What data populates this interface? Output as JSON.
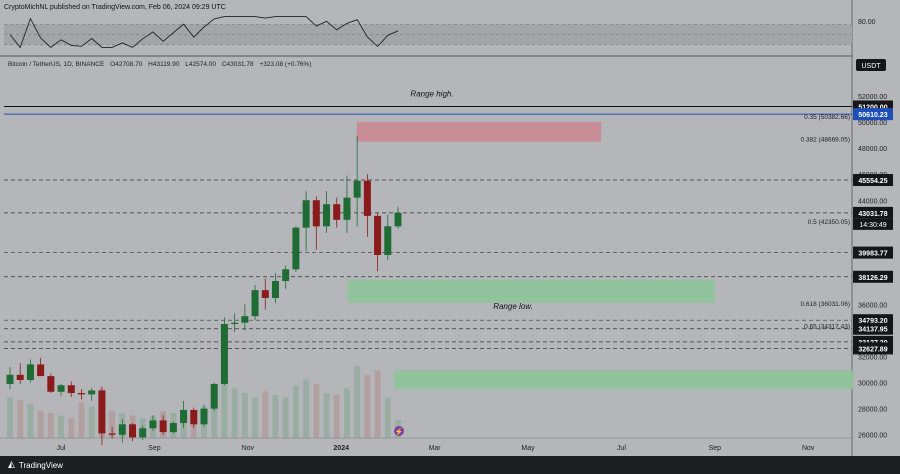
{
  "header": {
    "text": "CryptoMichNL published on TradingView.com, Feb 06, 2024 09:29 UTC"
  },
  "symbol": {
    "name": "Bitcoin / TetherUS, 1D, BINANCE",
    "open": "O42708.70",
    "high": "H43119.90",
    "low": "L42574.00",
    "close": "C43031.78",
    "change": "+323.08 (+0.76%)"
  },
  "currency": "USDT",
  "footer": {
    "brand": "TradingView"
  },
  "colors": {
    "bg": "#b5b6ba",
    "up": "#1f6b34",
    "down": "#8b1a1a",
    "support": "#8fc49b",
    "resistance": "#c98a93",
    "label": "#15161a",
    "blue": "#1e4fb8"
  },
  "chart_data": [
    {
      "type": "candlestick",
      "title": "Bitcoin / TetherUS, 1D, BINANCE",
      "x_ticks": [
        "Jul",
        "Sep",
        "Nov",
        "2024",
        "Mar",
        "May",
        "Jul",
        "Sep",
        "Nov"
      ],
      "y_ticks": [
        "52000.00",
        "50000.00",
        "48000.00",
        "46000.00",
        "44000.00",
        "42000.00",
        "40000.00",
        "38000.00",
        "36000.00",
        "34000.00",
        "32000.00",
        "30000.00",
        "28000.00",
        "26000.00"
      ],
      "ylim": [
        25750,
        54000
      ],
      "price_labels": [
        {
          "value": 51200.0,
          "label": "51200.00",
          "style": "black"
        },
        {
          "value": 50610.23,
          "label": "50610.23",
          "style": "blue"
        },
        {
          "value": 45554.25,
          "label": "45554.25",
          "style": "black"
        },
        {
          "value": 43031.78,
          "label": "43031.78",
          "style": "black"
        },
        {
          "value": 39983.77,
          "label": "39983.77",
          "style": "black"
        },
        {
          "value": 38126.29,
          "label": "38126.29",
          "style": "black"
        },
        {
          "value": 34793.2,
          "label": "34793.20",
          "style": "black"
        },
        {
          "value": 34137.95,
          "label": "34137.95",
          "style": "black"
        },
        {
          "value": 33127.39,
          "label": "33127.39",
          "style": "black"
        },
        {
          "value": 32627.89,
          "label": "32627.89",
          "style": "black"
        }
      ],
      "countdown": "14:30:49",
      "fib_levels": [
        {
          "label": "0.35 (50382.66)",
          "value": 50382.66
        },
        {
          "label": "0.382 (48669.05)",
          "value": 48669.05
        },
        {
          "label": "0.5 (42350.05)",
          "value": 42350.05
        },
        {
          "label": "0.618 (36031.06)",
          "value": 36031.06
        },
        {
          "label": "0.65 (34317.43)",
          "value": 34317.43
        }
      ],
      "annotations": [
        {
          "text": "Range high.",
          "value": 52200
        },
        {
          "text": "Range low.",
          "value": 35900
        }
      ],
      "zones": [
        {
          "kind": "resistance",
          "top": 50000,
          "bottom": 48500,
          "from": "2024-01-11",
          "to": "2024-06-18"
        },
        {
          "kind": "support",
          "top": 37900,
          "bottom": 36150,
          "from": "2024-01-05",
          "to": "2024-08-31"
        },
        {
          "kind": "support",
          "top": 30950,
          "bottom": 29500,
          "from": "2024-02-05",
          "to": "2024-11-30"
        }
      ],
      "ohlc_weekly": [
        [
          29900,
          31200,
          29500,
          30600
        ],
        [
          30600,
          31500,
          29900,
          30200
        ],
        [
          30200,
          31800,
          30000,
          31400
        ],
        [
          31400,
          31900,
          30800,
          30500
        ],
        [
          30500,
          30700,
          29200,
          29300
        ],
        [
          29300,
          29900,
          29000,
          29800
        ],
        [
          29800,
          30100,
          28900,
          29200
        ],
        [
          29200,
          29500,
          28700,
          29100
        ],
        [
          29100,
          29600,
          28600,
          29400
        ],
        [
          29400,
          29700,
          25200,
          26100
        ],
        [
          26100,
          26600,
          25700,
          26000
        ],
        [
          26000,
          27200,
          25400,
          26800
        ],
        [
          26800,
          26900,
          25500,
          25800
        ],
        [
          25800,
          26700,
          25600,
          26500
        ],
        [
          26500,
          27500,
          26300,
          27100
        ],
        [
          27100,
          27500,
          26000,
          26200
        ],
        [
          26200,
          27000,
          26100,
          26900
        ],
        [
          26900,
          28600,
          26500,
          27900
        ],
        [
          27900,
          28100,
          26500,
          26800
        ],
        [
          26800,
          28300,
          26600,
          28000
        ],
        [
          28000,
          30000,
          27800,
          29900
        ],
        [
          29900,
          35000,
          29800,
          34500
        ],
        [
          34500,
          35300,
          33900,
          34600
        ],
        [
          34600,
          36000,
          34000,
          35100
        ],
        [
          35100,
          37500,
          34800,
          37100
        ],
        [
          37100,
          38000,
          35600,
          36500
        ],
        [
          36500,
          38400,
          36100,
          37800
        ],
        [
          37800,
          39000,
          37200,
          38700
        ],
        [
          38700,
          42000,
          38500,
          41900
        ],
        [
          41900,
          44700,
          40100,
          44000
        ],
        [
          44000,
          44300,
          40200,
          42000
        ],
        [
          42000,
          44700,
          41500,
          43700
        ],
        [
          43700,
          44200,
          41900,
          42500
        ],
        [
          42500,
          45900,
          41500,
          44200
        ],
        [
          44200,
          48969,
          42000,
          45500
        ],
        [
          45500,
          46000,
          41200,
          42800
        ],
        [
          42800,
          43000,
          38555,
          39800
        ],
        [
          39800,
          42900,
          39400,
          42000
        ],
        [
          42000,
          43500,
          41800,
          43031
        ]
      ],
      "volume": [
        0.45,
        0.42,
        0.38,
        0.3,
        0.28,
        0.25,
        0.22,
        0.4,
        0.35,
        0.55,
        0.3,
        0.28,
        0.25,
        0.22,
        0.25,
        0.3,
        0.28,
        0.32,
        0.3,
        0.35,
        0.48,
        0.75,
        0.55,
        0.5,
        0.45,
        0.52,
        0.48,
        0.45,
        0.58,
        0.65,
        0.6,
        0.5,
        0.48,
        0.55,
        0.8,
        0.7,
        0.75,
        0.45,
        0.2
      ],
      "rsi": {
        "ylim": [
          20,
          90
        ],
        "tick": "80.00",
        "band": [
          30,
          70
        ]
      }
    }
  ]
}
